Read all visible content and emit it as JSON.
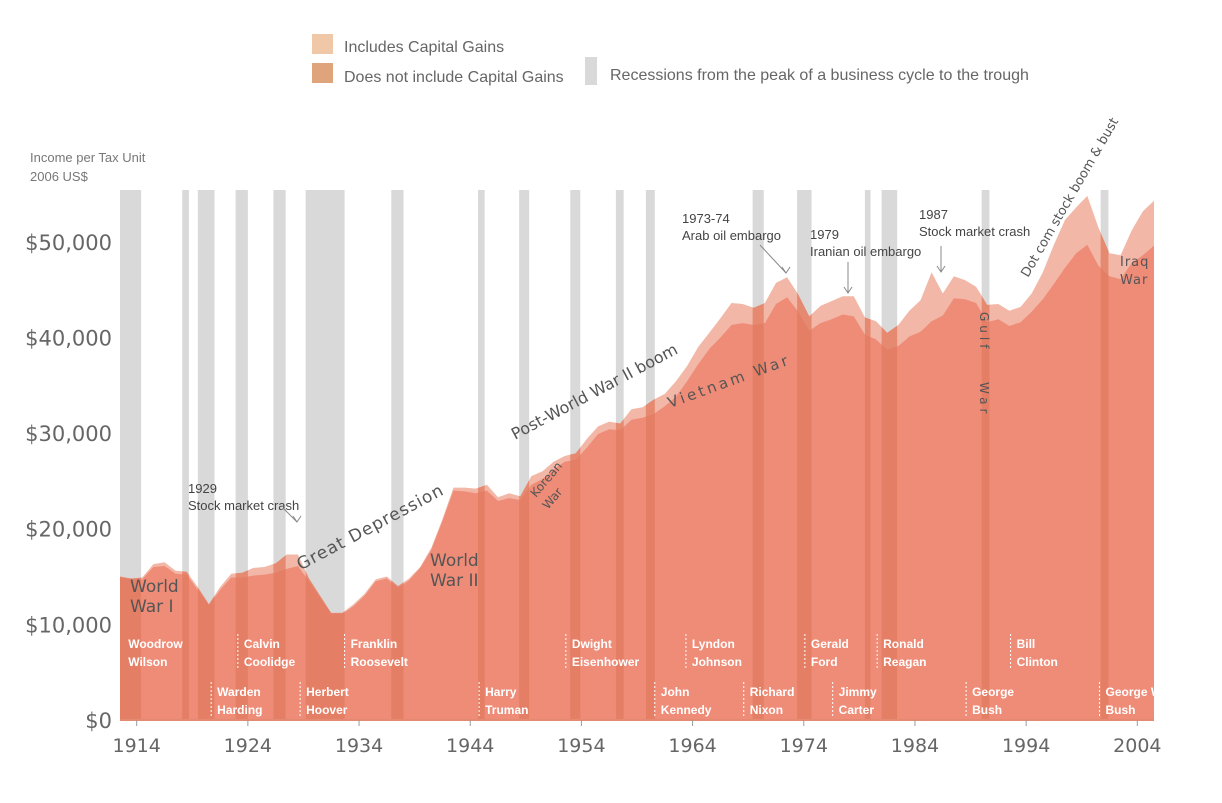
{
  "colors": {
    "with_gains": "#f2b7a6",
    "without_gains": "#ef8c78",
    "recession": "#d9d9d9",
    "presidency_band": "#e0795f",
    "legend_light": "#f0c8a8",
    "legend_dark": "#e0a47c"
  },
  "legend": {
    "includes": "Includes Capital Gains",
    "excludes": "Does not include Capital Gains",
    "recessions": "Recessions from the peak of a business cycle to the trough"
  },
  "chart_data": {
    "type": "area",
    "ylabel_lines": [
      "Income per Tax Unit",
      "2006 US$"
    ],
    "xlim": [
      1913,
      2006
    ],
    "ylim": [
      0,
      55000
    ],
    "x_ticks": [
      "1914",
      "1924",
      "1934",
      "1944",
      "1954",
      "1964",
      "1974",
      "1984",
      "1994",
      "2004"
    ],
    "y_ticks": [
      {
        "value": 0,
        "label": "$0"
      },
      {
        "value": 10000,
        "label": "$10,000"
      },
      {
        "value": 20000,
        "label": "$20,000"
      },
      {
        "value": 30000,
        "label": "$30,000"
      },
      {
        "value": 40000,
        "label": "$40,000"
      },
      {
        "value": 50000,
        "label": "$50,000"
      }
    ],
    "series": [
      {
        "name": "Includes Capital Gains",
        "points": [
          [
            1913,
            15000
          ],
          [
            1914,
            14800
          ],
          [
            1915,
            14900
          ],
          [
            1916,
            16300
          ],
          [
            1917,
            16500
          ],
          [
            1918,
            15600
          ],
          [
            1919,
            15500
          ],
          [
            1920,
            13900
          ],
          [
            1921,
            12100
          ],
          [
            1922,
            13900
          ],
          [
            1923,
            15300
          ],
          [
            1924,
            15400
          ],
          [
            1925,
            15900
          ],
          [
            1926,
            16000
          ],
          [
            1927,
            16400
          ],
          [
            1928,
            17300
          ],
          [
            1929,
            17300
          ],
          [
            1930,
            14800
          ],
          [
            1931,
            13000
          ],
          [
            1932,
            11200
          ],
          [
            1933,
            11200
          ],
          [
            1934,
            12100
          ],
          [
            1935,
            13200
          ],
          [
            1936,
            14700
          ],
          [
            1937,
            15000
          ],
          [
            1938,
            14000
          ],
          [
            1939,
            14800
          ],
          [
            1940,
            16000
          ],
          [
            1941,
            18000
          ],
          [
            1942,
            21000
          ],
          [
            1943,
            24300
          ],
          [
            1944,
            24300
          ],
          [
            1945,
            24200
          ],
          [
            1946,
            24600
          ],
          [
            1947,
            23300
          ],
          [
            1948,
            23700
          ],
          [
            1949,
            23400
          ],
          [
            1950,
            25500
          ],
          [
            1951,
            26000
          ],
          [
            1952,
            27000
          ],
          [
            1953,
            27600
          ],
          [
            1954,
            27900
          ],
          [
            1955,
            29400
          ],
          [
            1956,
            30700
          ],
          [
            1957,
            31200
          ],
          [
            1958,
            31000
          ],
          [
            1959,
            32500
          ],
          [
            1960,
            32700
          ],
          [
            1961,
            33500
          ],
          [
            1962,
            34100
          ],
          [
            1963,
            35400
          ],
          [
            1964,
            37000
          ],
          [
            1965,
            39000
          ],
          [
            1966,
            40500
          ],
          [
            1967,
            42000
          ],
          [
            1968,
            43600
          ],
          [
            1969,
            43500
          ],
          [
            1970,
            43100
          ],
          [
            1971,
            43600
          ],
          [
            1972,
            45700
          ],
          [
            1973,
            46300
          ],
          [
            1974,
            44500
          ],
          [
            1975,
            42200
          ],
          [
            1976,
            43300
          ],
          [
            1977,
            43800
          ],
          [
            1978,
            44300
          ],
          [
            1979,
            44300
          ],
          [
            1980,
            42100
          ],
          [
            1981,
            41700
          ],
          [
            1982,
            40500
          ],
          [
            1983,
            41300
          ],
          [
            1984,
            42800
          ],
          [
            1985,
            43900
          ],
          [
            1986,
            46800
          ],
          [
            1987,
            44600
          ],
          [
            1988,
            46400
          ],
          [
            1989,
            46000
          ],
          [
            1990,
            45300
          ],
          [
            1991,
            43400
          ],
          [
            1992,
            43500
          ],
          [
            1993,
            42800
          ],
          [
            1994,
            43200
          ],
          [
            1995,
            44600
          ],
          [
            1996,
            46800
          ],
          [
            1997,
            49700
          ],
          [
            1998,
            52300
          ],
          [
            1999,
            53600
          ],
          [
            2000,
            54800
          ],
          [
            2001,
            51500
          ],
          [
            2002,
            48800
          ],
          [
            2003,
            48600
          ],
          [
            2004,
            51200
          ],
          [
            2005,
            53200
          ],
          [
            2006,
            54300
          ]
        ]
      },
      {
        "name": "Does not include Capital Gains",
        "points": [
          [
            1913,
            14900
          ],
          [
            1914,
            14700
          ],
          [
            1915,
            14700
          ],
          [
            1916,
            16000
          ],
          [
            1917,
            16100
          ],
          [
            1918,
            15300
          ],
          [
            1919,
            15200
          ],
          [
            1920,
            13600
          ],
          [
            1921,
            12000
          ],
          [
            1922,
            13600
          ],
          [
            1923,
            14900
          ],
          [
            1924,
            14900
          ],
          [
            1925,
            15100
          ],
          [
            1926,
            15200
          ],
          [
            1927,
            15400
          ],
          [
            1928,
            15800
          ],
          [
            1929,
            16100
          ],
          [
            1930,
            14500
          ],
          [
            1931,
            12800
          ],
          [
            1932,
            11100
          ],
          [
            1933,
            11100
          ],
          [
            1934,
            11900
          ],
          [
            1935,
            13000
          ],
          [
            1936,
            14500
          ],
          [
            1937,
            14800
          ],
          [
            1938,
            13800
          ],
          [
            1939,
            14600
          ],
          [
            1940,
            15900
          ],
          [
            1941,
            17800
          ],
          [
            1942,
            20800
          ],
          [
            1943,
            24000
          ],
          [
            1944,
            23900
          ],
          [
            1945,
            23700
          ],
          [
            1946,
            24000
          ],
          [
            1947,
            22900
          ],
          [
            1948,
            23200
          ],
          [
            1949,
            23000
          ],
          [
            1950,
            24600
          ],
          [
            1951,
            25200
          ],
          [
            1952,
            26200
          ],
          [
            1953,
            27000
          ],
          [
            1954,
            27200
          ],
          [
            1955,
            28500
          ],
          [
            1956,
            29900
          ],
          [
            1957,
            30400
          ],
          [
            1958,
            30300
          ],
          [
            1959,
            31400
          ],
          [
            1960,
            31600
          ],
          [
            1961,
            32000
          ],
          [
            1962,
            32800
          ],
          [
            1963,
            33800
          ],
          [
            1964,
            35400
          ],
          [
            1965,
            37200
          ],
          [
            1966,
            38800
          ],
          [
            1967,
            40000
          ],
          [
            1968,
            41300
          ],
          [
            1969,
            41500
          ],
          [
            1970,
            41300
          ],
          [
            1971,
            41500
          ],
          [
            1972,
            43500
          ],
          [
            1973,
            44200
          ],
          [
            1974,
            42700
          ],
          [
            1975,
            40700
          ],
          [
            1976,
            41500
          ],
          [
            1977,
            41900
          ],
          [
            1978,
            42400
          ],
          [
            1979,
            42200
          ],
          [
            1980,
            40300
          ],
          [
            1981,
            39800
          ],
          [
            1982,
            38700
          ],
          [
            1983,
            39100
          ],
          [
            1984,
            40100
          ],
          [
            1985,
            40600
          ],
          [
            1986,
            41700
          ],
          [
            1987,
            42300
          ],
          [
            1988,
            44100
          ],
          [
            1989,
            44000
          ],
          [
            1990,
            43600
          ],
          [
            1991,
            41600
          ],
          [
            1992,
            41900
          ],
          [
            1993,
            41200
          ],
          [
            1994,
            41600
          ],
          [
            1995,
            42700
          ],
          [
            1996,
            44000
          ],
          [
            1997,
            45600
          ],
          [
            1998,
            47300
          ],
          [
            1999,
            48800
          ],
          [
            2000,
            49700
          ],
          [
            2001,
            47500
          ],
          [
            2002,
            46400
          ],
          [
            2003,
            46100
          ],
          [
            2004,
            47800
          ],
          [
            2005,
            48600
          ],
          [
            2006,
            49600
          ]
        ]
      }
    ],
    "recessions": [
      [
        1913.0,
        1914.9
      ],
      [
        1918.6,
        1919.2
      ],
      [
        1920.0,
        1921.5
      ],
      [
        1923.4,
        1924.5
      ],
      [
        1926.8,
        1927.9
      ],
      [
        1929.7,
        1933.2
      ],
      [
        1937.4,
        1938.5
      ],
      [
        1945.2,
        1945.8
      ],
      [
        1948.9,
        1949.8
      ],
      [
        1953.5,
        1954.4
      ],
      [
        1957.6,
        1958.3
      ],
      [
        1960.3,
        1961.1
      ],
      [
        1969.9,
        1970.9
      ],
      [
        1973.9,
        1975.2
      ],
      [
        1980.0,
        1980.5
      ],
      [
        1981.5,
        1982.9
      ],
      [
        1990.5,
        1991.2
      ],
      [
        2001.2,
        2001.9
      ]
    ],
    "presidencies": [
      {
        "name": [
          "Woodrow",
          "Wilson"
        ],
        "start": 1913.2,
        "end": 1921.2,
        "row": 0
      },
      {
        "name": [
          "Warden",
          "Harding"
        ],
        "start": 1921.2,
        "end": 1923.6,
        "row": 1
      },
      {
        "name": [
          "Calvin",
          "Coolidge"
        ],
        "start": 1923.6,
        "end": 1929.2,
        "row": 0
      },
      {
        "name": [
          "Herbert",
          "Hoover"
        ],
        "start": 1929.2,
        "end": 1933.2,
        "row": 1
      },
      {
        "name": [
          "Franklin",
          "Roosevelt"
        ],
        "start": 1933.2,
        "end": 1945.3,
        "row": 0
      },
      {
        "name": [
          "Harry",
          "Truman"
        ],
        "start": 1945.3,
        "end": 1953.1,
        "row": 1
      },
      {
        "name": [
          "Dwight",
          "Eisenhower"
        ],
        "start": 1953.1,
        "end": 1961.1,
        "row": 0
      },
      {
        "name": [
          "John",
          "Kennedy"
        ],
        "start": 1961.1,
        "end": 1963.9,
        "row": 1
      },
      {
        "name": [
          "Lyndon",
          "Johnson"
        ],
        "start": 1963.9,
        "end": 1969.1,
        "row": 0
      },
      {
        "name": [
          "Richard",
          "Nixon"
        ],
        "start": 1969.1,
        "end": 1974.6,
        "row": 1
      },
      {
        "name": [
          "Gerald",
          "Ford"
        ],
        "start": 1974.6,
        "end": 1977.1,
        "row": 0
      },
      {
        "name": [
          "Jimmy",
          "Carter"
        ],
        "start": 1977.1,
        "end": 1981.1,
        "row": 1
      },
      {
        "name": [
          "Ronald",
          "Reagan"
        ],
        "start": 1981.1,
        "end": 1989.1,
        "row": 0
      },
      {
        "name": [
          "George",
          "Bush"
        ],
        "start": 1989.1,
        "end": 1993.1,
        "row": 1
      },
      {
        "name": [
          "Bill",
          "Clinton"
        ],
        "start": 1993.1,
        "end": 2001.1,
        "row": 0
      },
      {
        "name": [
          "George W.",
          "Bush"
        ],
        "start": 2001.1,
        "end": 2006,
        "row": 1
      }
    ],
    "annotations": [
      {
        "lines": [
          "1929",
          "Stock market crash"
        ],
        "year": 1929,
        "value": 17300
      },
      {
        "lines": [
          "1973-74",
          "Arab oil embargo"
        ],
        "year": 1973,
        "value": 46300
      },
      {
        "lines": [
          "1979",
          "Iranian oil embargo"
        ],
        "year": 1979,
        "value": 44300
      },
      {
        "lines": [
          "1987",
          "Stock market crash"
        ],
        "year": 1987,
        "value": 44600
      }
    ],
    "eras": [
      {
        "text": "World War I",
        "lines": [
          "World",
          "War I"
        ]
      },
      {
        "text": "Great Depression"
      },
      {
        "text": "World War II",
        "lines": [
          "World",
          "War II"
        ]
      },
      {
        "text": "Post-World War II boom"
      },
      {
        "text": "Korean War",
        "lines": [
          "Korean",
          "War"
        ]
      },
      {
        "text": "Vietnam War"
      },
      {
        "text": "Gulf War",
        "lines": [
          "Gulf",
          "War"
        ]
      },
      {
        "text": "Dot com stock boom & bust"
      },
      {
        "text": "Iraq War",
        "lines": [
          "Iraq",
          "War"
        ]
      }
    ]
  }
}
